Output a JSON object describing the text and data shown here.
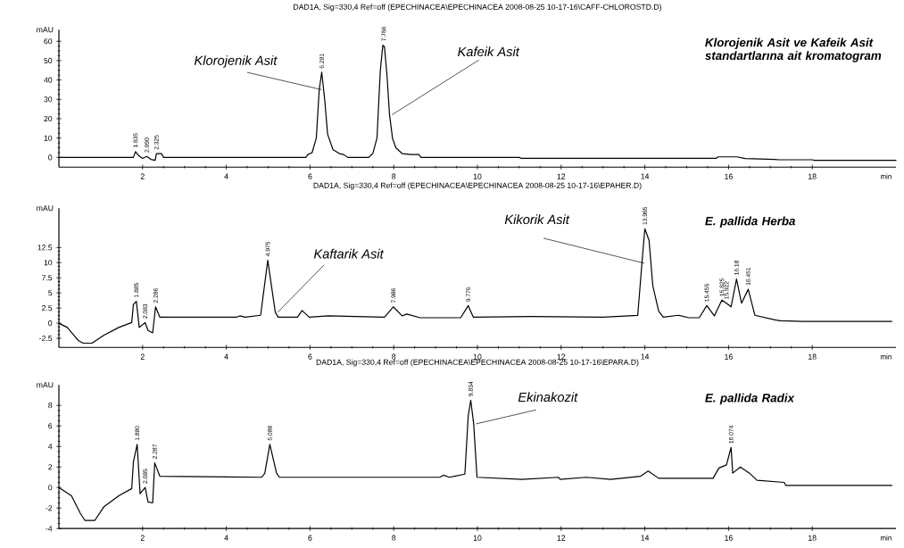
{
  "chart_data": [
    {
      "type": "line",
      "title": "DAD1A, Sig=330,4 Ref=off (EPECHINACEA\\EPECHINACEA 2008-08-25 10-17-16\\CAFF-CHLOROSTD.D)",
      "xlabel": "min",
      "ylabel": "mAU",
      "color": "#000000",
      "xlim": [
        0,
        20
      ],
      "xticks": [
        2,
        4,
        6,
        8,
        10,
        12,
        14,
        16,
        18
      ],
      "ylim": [
        -5,
        66
      ],
      "yticks": [
        0,
        10,
        20,
        30,
        40,
        50,
        60
      ],
      "x": [
        0,
        1.78,
        1.83,
        1.9,
        2.0,
        2.1,
        2.2,
        2.3,
        2.33,
        2.45,
        2.5,
        5.9,
        5.95,
        6.05,
        6.15,
        6.22,
        6.28,
        6.35,
        6.42,
        6.55,
        6.7,
        6.8,
        6.9,
        7.4,
        7.5,
        7.6,
        7.68,
        7.74,
        7.78,
        7.84,
        7.9,
        7.97,
        8.05,
        8.2,
        8.4,
        8.6,
        8.65,
        11.0,
        11.05,
        15.7,
        15.75,
        16.2,
        16.4,
        17.1,
        17.2,
        18.0,
        18.05,
        20
      ],
      "values": [
        0,
        0,
        3,
        1,
        -0.5,
        0.5,
        -1,
        -1.5,
        2,
        2,
        0,
        0,
        1.5,
        2.5,
        10,
        35,
        44,
        30,
        12,
        4,
        2,
        1.5,
        0,
        0,
        2,
        10,
        45,
        58,
        57,
        42,
        22,
        10,
        5,
        2,
        1.5,
        1.5,
        0,
        0,
        -0.5,
        -0.5,
        0.3,
        0.3,
        -0.6,
        -1,
        -1.2,
        -1.2,
        -1.5,
        -1.5
      ],
      "annotations": [
        {
          "text": "Klorojenik Asit",
          "x": 6.22,
          "y": 35
        },
        {
          "text": "Kafeik Asit",
          "x": 7.9,
          "y": 22
        },
        {
          "text": "1.835",
          "x": 1.83,
          "y": 3
        },
        {
          "text": "2.090",
          "x": 2.1,
          "y": 0.5
        },
        {
          "text": "2.325",
          "x": 2.33,
          "y": 2
        },
        {
          "text": "6.281",
          "x": 6.28,
          "y": 44
        },
        {
          "text": "7.786",
          "x": 7.76,
          "y": 58
        },
        "Klorojenik Asit ve Kafeik Asit standartlarına ait kromatogram"
      ]
    },
    {
      "type": "line",
      "title": "DAD1A, Sig=330,4 Ref=off (EPECHINACEA\\EPECHINACEA 2008-08-25 10-17-16\\EPAHER.D)",
      "xlabel": "min",
      "ylabel": "mAU",
      "color": "#000000",
      "xlim": [
        0,
        20
      ],
      "xticks": [
        2,
        4,
        6,
        8,
        10,
        12,
        14,
        16,
        18
      ],
      "ylim": [
        -4,
        19
      ],
      "yticks": [
        -2.5,
        0,
        2.5,
        5,
        7.5,
        10,
        12.5
      ],
      "x": [
        0,
        0.2,
        0.47,
        0.58,
        0.79,
        1.07,
        1.43,
        1.74,
        1.78,
        1.85,
        1.92,
        2.06,
        2.13,
        2.24,
        2.31,
        2.41,
        4.25,
        4.32,
        4.45,
        4.82,
        4.99,
        5.17,
        5.24,
        5.7,
        5.81,
        5.98,
        6.44,
        7.78,
        7.99,
        8.2,
        8.31,
        8.63,
        9.6,
        9.78,
        9.9,
        11.27,
        13.0,
        13.83,
        13.93,
        14.0,
        14.1,
        14.19,
        14.33,
        14.44,
        14.8,
        15.05,
        15.3,
        15.48,
        15.66,
        15.84,
        15.95,
        16.06,
        16.19,
        16.31,
        16.47,
        16.63,
        17.13,
        17.24,
        17.78,
        19.0,
        19.9
      ],
      "values": [
        0,
        -0.7,
        -2.9,
        -3.3,
        -3.3,
        -2.0,
        -0.7,
        0.1,
        3.1,
        3.6,
        -0.7,
        0.1,
        -1.2,
        -1.6,
        2.7,
        1.0,
        1.0,
        1.2,
        1.0,
        1.3,
        10.4,
        1.8,
        1.0,
        1.0,
        2.1,
        1.0,
        1.2,
        1.0,
        2.7,
        1.2,
        1.5,
        0.9,
        0.9,
        2.9,
        1.0,
        1.1,
        1.0,
        1.3,
        9.9,
        15.6,
        13.7,
        6.2,
        2.0,
        1.0,
        1.3,
        0.9,
        0.9,
        2.9,
        1.2,
        3.8,
        3.3,
        2.7,
        7.3,
        3.3,
        5.6,
        1.3,
        0.5,
        0.4,
        0.3,
        0.3,
        0.3
      ],
      "annotations": [
        {
          "text": "Kaftarik Asit",
          "x": 5.17,
          "y": 1.8
        },
        {
          "text": "Kikorik Asit",
          "x": 13.93,
          "y": 9.9
        },
        {
          "text": "1.885",
          "x": 1.85,
          "y": 3.6
        },
        {
          "text": "2.083",
          "x": 2.06,
          "y": 0.1
        },
        {
          "text": "2.286",
          "x": 2.31,
          "y": 2.7
        },
        {
          "text": "4.975",
          "x": 4.99,
          "y": 10.4
        },
        {
          "text": "7.986",
          "x": 7.99,
          "y": 2.7
        },
        {
          "text": "9.776",
          "x": 9.78,
          "y": 2.9
        },
        {
          "text": "13.985",
          "x": 14.0,
          "y": 15.6
        },
        {
          "text": "15.455",
          "x": 15.48,
          "y": 2.9
        },
        {
          "text": "15.825",
          "x": 15.84,
          "y": 3.8
        },
        {
          "text": "15.922",
          "x": 15.95,
          "y": 3.3
        },
        {
          "text": "16.18",
          "x": 16.19,
          "y": 7.3
        },
        {
          "text": "16.451",
          "x": 16.47,
          "y": 5.6
        },
        "E. pallida Herba"
      ]
    },
    {
      "type": "line",
      "title": "DAD1A, Sig=330,4 Ref=off (EPECHINACEA\\EPECHINACEA 2008-08-25 10-17-16\\EPARA.D)",
      "xlabel": "min",
      "ylabel": "mAU",
      "color": "#000000",
      "xlim": [
        0,
        20
      ],
      "xticks": [
        2,
        4,
        6,
        8,
        10,
        12,
        14,
        16,
        18
      ],
      "ylim": [
        -4,
        10
      ],
      "yticks": [
        -4,
        -2,
        0,
        2,
        4,
        6,
        8
      ],
      "x": [
        0,
        0.3,
        0.51,
        0.62,
        0.86,
        1.07,
        1.43,
        1.74,
        1.78,
        1.87,
        1.94,
        2.06,
        2.13,
        2.24,
        2.29,
        2.41,
        4.85,
        4.92,
        5.04,
        5.2,
        5.27,
        9.1,
        9.19,
        9.33,
        9.7,
        9.78,
        9.84,
        9.91,
        9.99,
        11.07,
        11.94,
        11.97,
        12.6,
        13.18,
        13.9,
        14.08,
        14.33,
        15.63,
        15.77,
        15.95,
        16.06,
        16.1,
        16.28,
        16.5,
        16.68,
        17.33,
        17.37,
        19.0,
        19.9
      ],
      "values": [
        0,
        -0.8,
        -2.5,
        -3.2,
        -3.2,
        -1.9,
        -0.8,
        -0.1,
        2.5,
        4.2,
        -0.6,
        0,
        -1.4,
        -1.5,
        2.4,
        1.1,
        1.0,
        1.4,
        4.2,
        1.4,
        1.0,
        1.0,
        1.2,
        1.0,
        1.3,
        7.0,
        8.5,
        6.2,
        1.0,
        0.8,
        1.0,
        0.8,
        1.0,
        0.8,
        1.1,
        1.6,
        0.9,
        0.9,
        1.9,
        2.2,
        3.9,
        1.4,
        2.0,
        1.4,
        0.7,
        0.5,
        0.2,
        0.2,
        0.2
      ],
      "annotations": [
        {
          "text": "Ekinakozit",
          "x": 9.91,
          "y": 6.2
        },
        {
          "text": "1.880",
          "x": 1.87,
          "y": 4.2
        },
        {
          "text": "2.085",
          "x": 2.06,
          "y": 0
        },
        {
          "text": "2.287",
          "x": 2.29,
          "y": 2.4
        },
        {
          "text": "5.088",
          "x": 5.04,
          "y": 4.2
        },
        {
          "text": "9.834",
          "x": 9.84,
          "y": 8.5
        },
        {
          "text": "16.074",
          "x": 16.06,
          "y": 3.9
        },
        "E. pallida Radix"
      ]
    }
  ]
}
